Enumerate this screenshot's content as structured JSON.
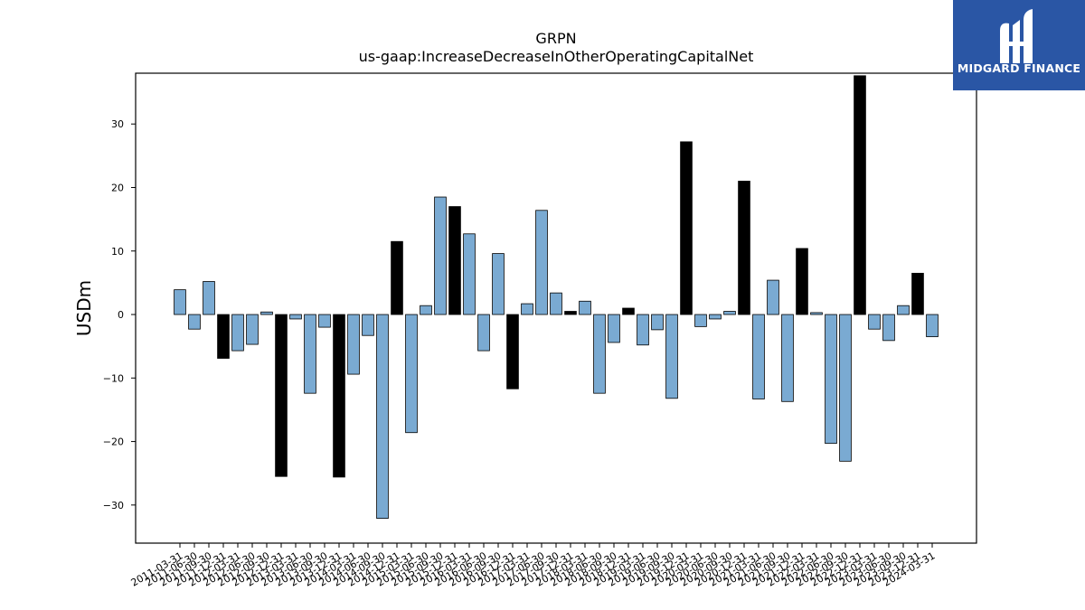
{
  "chart_data": {
    "type": "bar",
    "title": "GRPN",
    "subtitle": "us-gaap:IncreaseDecreaseInOtherOperatingCapitalNet",
    "xlabel": "",
    "ylabel": "USDm",
    "ylim": [
      -36,
      38
    ],
    "yticks": [
      -30,
      -20,
      -10,
      0,
      10,
      20,
      30
    ],
    "grid": false,
    "categories": [
      "2011-03-31",
      "2011-06-30",
      "2011-09-30",
      "2011-12-31",
      "2012-03-31",
      "2012-06-30",
      "2012-09-30",
      "2012-12-31",
      "2013-03-31",
      "2013-06-30",
      "2013-09-30",
      "2013-12-31",
      "2014-03-31",
      "2014-06-30",
      "2014-09-30",
      "2014-12-31",
      "2015-03-31",
      "2015-06-30",
      "2015-09-30",
      "2015-12-31",
      "2016-03-31",
      "2016-06-30",
      "2016-09-30",
      "2016-12-31",
      "2017-03-31",
      "2017-06-30",
      "2017-09-30",
      "2017-12-31",
      "2018-03-31",
      "2018-06-30",
      "2018-09-30",
      "2018-12-31",
      "2019-03-31",
      "2019-06-30",
      "2019-09-30",
      "2019-12-31",
      "2020-03-31",
      "2020-06-30",
      "2020-09-30",
      "2020-12-31",
      "2021-03-31",
      "2021-06-30",
      "2021-09-30",
      "2021-12-31",
      "2022-03-31",
      "2022-06-30",
      "2022-09-30",
      "2022-12-31",
      "2023-03-31",
      "2023-06-30",
      "2023-09-30",
      "2023-12-31",
      "2024-03-31"
    ],
    "values": [
      3.9,
      -2.3,
      5.2,
      -6.9,
      -5.7,
      -4.7,
      0.4,
      -25.5,
      -0.7,
      -12.4,
      -2.0,
      -25.6,
      -9.4,
      -3.3,
      -32.1,
      11.5,
      -18.6,
      1.4,
      18.5,
      17.0,
      12.7,
      -5.7,
      9.6,
      -11.7,
      1.7,
      16.4,
      3.4,
      0.5,
      2.1,
      -12.4,
      -4.4,
      1.0,
      -4.8,
      -2.4,
      -13.2,
      27.2,
      -1.9,
      -0.7,
      0.5,
      21.0,
      -13.3,
      5.4,
      -13.7,
      10.4,
      0.3,
      -20.3,
      -23.1,
      37.6,
      -2.3,
      -4.1,
      1.4,
      6.5,
      -3.5
    ],
    "highlight_indices": [
      3,
      7,
      11,
      15,
      19,
      23,
      27,
      31,
      35,
      39,
      43,
      47,
      51
    ],
    "bar_color": "#7aaad2",
    "highlight_color": "#000000",
    "edge_color": "#000000"
  },
  "logo": {
    "text": "MIDGARD FINANCE",
    "icon": "midgard-finance-logo-icon",
    "background": "#2a56a5"
  }
}
